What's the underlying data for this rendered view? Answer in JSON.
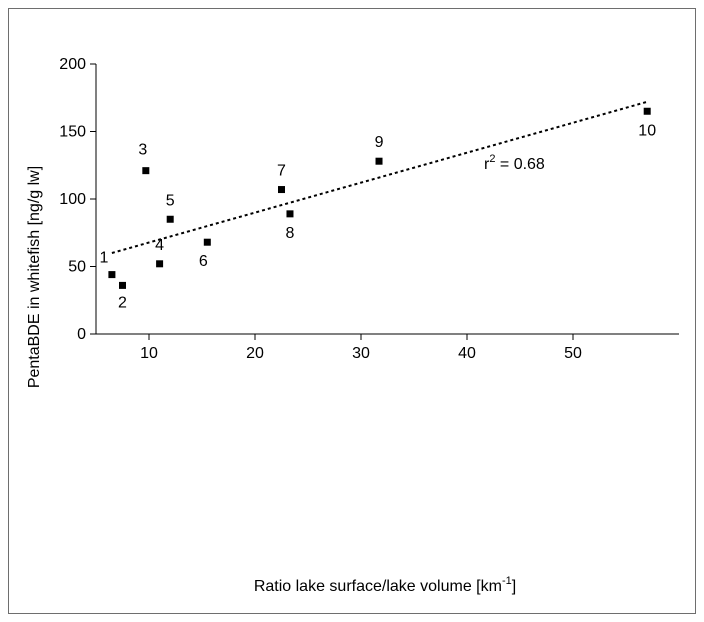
{
  "chart_data": {
    "type": "scatter",
    "title": "",
    "xlabel": {
      "text": "Ratio lake surface/lake volume [km",
      "sup": "-1",
      "suffix": "]"
    },
    "ylabel": "PentaBDE in whitefish [ng/g lw]",
    "xlim": [
      5,
      60
    ],
    "ylim": [
      0,
      200
    ],
    "x_ticks": [
      10,
      20,
      30,
      40,
      50
    ],
    "y_ticks": [
      0,
      50,
      100,
      150,
      200
    ],
    "x_tick_labels": [
      "10",
      "20",
      "30",
      "40",
      "50"
    ],
    "y_tick_labels": [
      "0",
      "50",
      "100",
      "150",
      "200"
    ],
    "grid": false,
    "points": [
      {
        "label": "1",
        "x": 6.5,
        "y": 44
      },
      {
        "label": "2",
        "x": 7.5,
        "y": 36
      },
      {
        "label": "3",
        "x": 9.7,
        "y": 121
      },
      {
        "label": "4",
        "x": 11.0,
        "y": 52
      },
      {
        "label": "5",
        "x": 12.0,
        "y": 85
      },
      {
        "label": "6",
        "x": 15.5,
        "y": 68
      },
      {
        "label": "7",
        "x": 22.5,
        "y": 107
      },
      {
        "label": "8",
        "x": 23.3,
        "y": 89
      },
      {
        "label": "9",
        "x": 31.7,
        "y": 128
      },
      {
        "label": "10",
        "x": 57.0,
        "y": 165
      }
    ],
    "trendline": {
      "x": [
        6.5,
        57.0
      ],
      "y": [
        60,
        172
      ],
      "style": "dotted"
    },
    "annotation": {
      "base": "r",
      "sup": "2",
      "rest": " = 0.68"
    }
  }
}
